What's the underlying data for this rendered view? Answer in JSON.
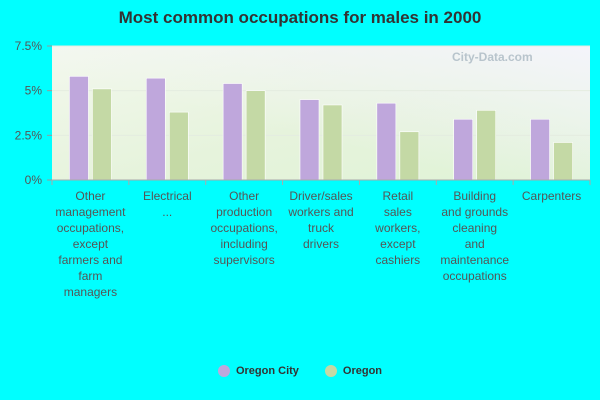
{
  "chart_data": {
    "type": "bar",
    "title": "Most common occupations for males in 2000",
    "categories": [
      "Other management occupations, except farmers and farm managers",
      "Electrical ...",
      "Other production occupations, including supervisors",
      "Driver/sales workers and truck drivers",
      "Retail sales workers, except cashiers",
      "Building and grounds cleaning and maintenance occupations",
      "Carpenters"
    ],
    "series": [
      {
        "name": "Oregon City",
        "color": "#bfa7dc",
        "values": [
          5.8,
          5.7,
          5.4,
          4.5,
          4.3,
          3.4,
          3.4
        ]
      },
      {
        "name": "Oregon",
        "color": "#c4d9a5",
        "values": [
          5.1,
          3.8,
          5.0,
          4.2,
          2.7,
          3.9,
          2.1
        ]
      }
    ],
    "yticks": [
      "0%",
      "2.5%",
      "5%",
      "7.5%"
    ],
    "ylim": [
      0,
      7.5
    ],
    "xlabel": "",
    "ylabel": "",
    "legend_position": "bottom",
    "grid": true
  },
  "watermark": "City-Data.com"
}
